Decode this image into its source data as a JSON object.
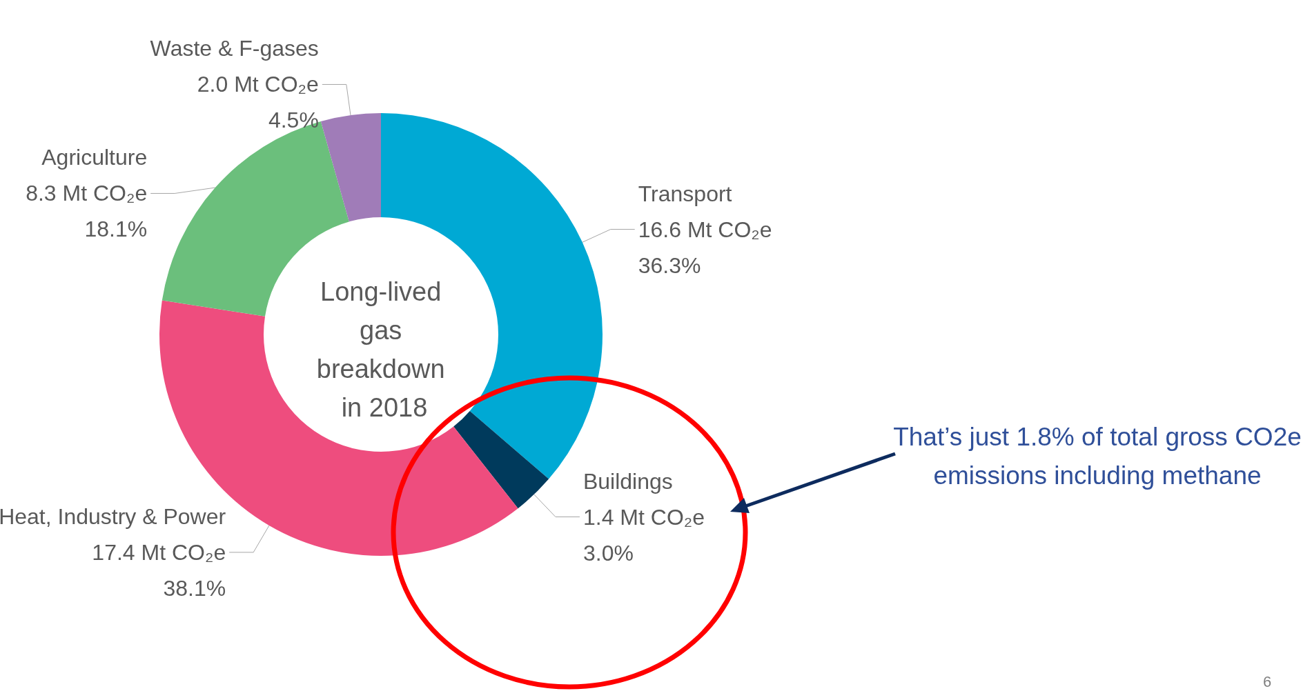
{
  "chart_data": {
    "type": "donut",
    "title": "Long-lived gas breakdown in 2018",
    "categories": [
      "Transport",
      "Buildings",
      "Heat, Industry & Power",
      "Agriculture",
      "Waste & F-gases"
    ],
    "values": [
      16.6,
      1.4,
      17.4,
      8.3,
      2.0
    ],
    "colors": [
      "#00a9d4",
      "#003a5c",
      "#ee4d7e",
      "#6bbf7c",
      "#a07cb8"
    ],
    "value_labels": [
      "16.6 Mt CO₂e\n36.3%",
      "1.4 Mt CO₂e\n3.0%",
      "17.4 Mt CO₂e\n38.1%",
      "8.3 Mt CO₂e\n18.1%",
      "2.0 Mt CO₂e\n4.5%"
    ],
    "annotations": [
      "That’s just 1.8% of total gross CO2e emissions including methane",
      "6"
    ],
    "legend": false
  }
}
